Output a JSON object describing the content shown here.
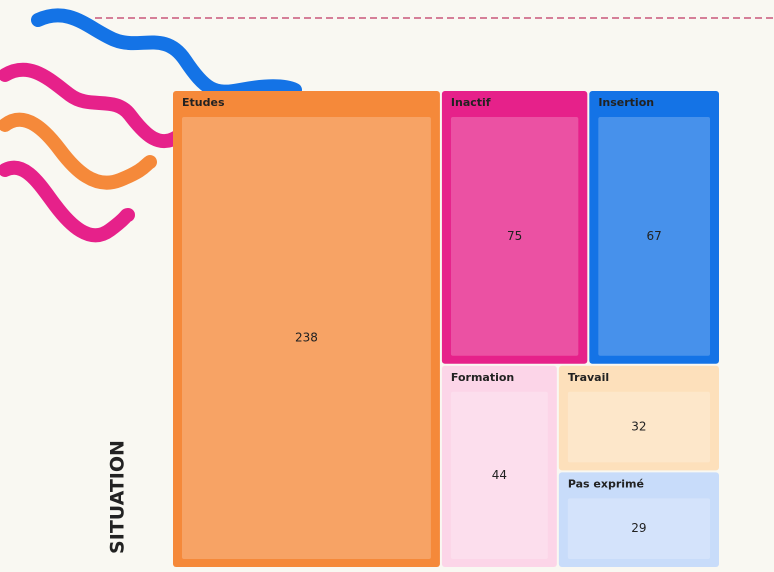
{
  "chart_data": {
    "type": "treemap",
    "title": "SITUATION",
    "categories": [
      "Etudes",
      "Inactif",
      "Insertion",
      "Formation",
      "Travail",
      "Pas exprimé"
    ],
    "values": [
      238,
      75,
      67,
      44,
      32,
      29
    ],
    "colors": [
      "#f5893a",
      "#e6218a",
      "#1473e6",
      "#fcd5e8",
      "#fde0bb",
      "#c8dcfa"
    ]
  }
}
